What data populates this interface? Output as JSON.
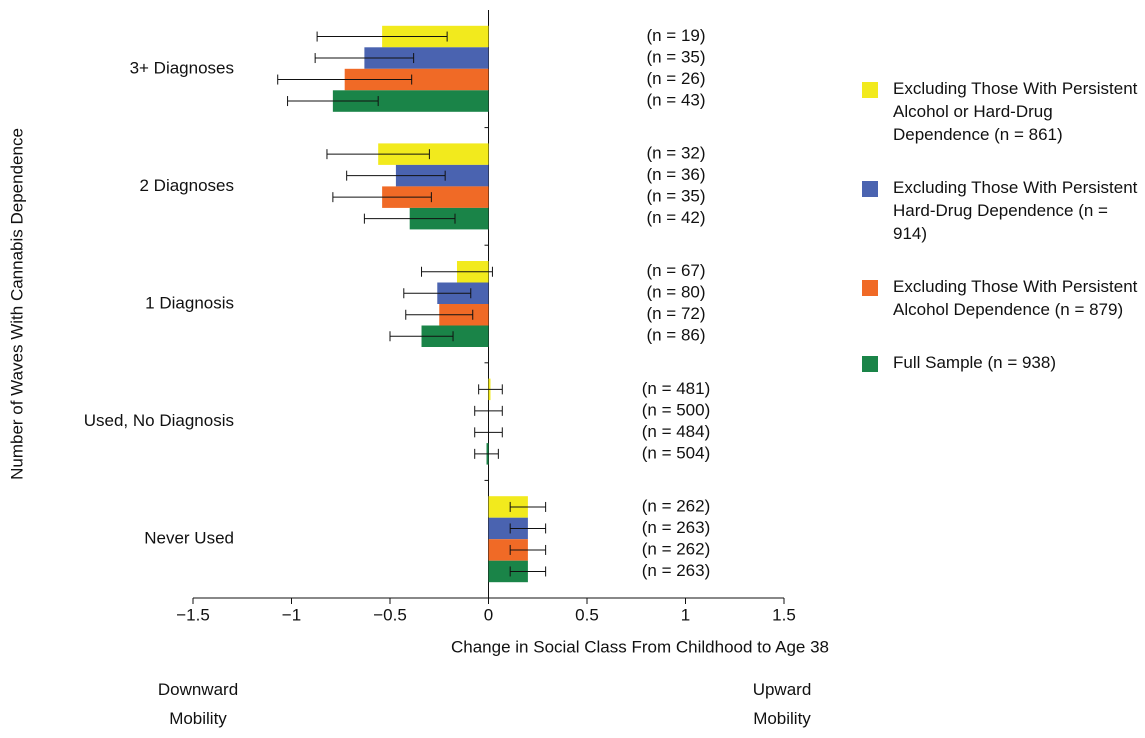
{
  "chart_data": {
    "type": "hbar-errorbar",
    "y_label": "Number of Waves With Cannabis Dependence",
    "x_label": "Change in Social Class From Childhood to Age 38",
    "annotations": [
      "Downward Mobility",
      "Upward Mobility"
    ],
    "categories": [
      "3+ Diagnoses",
      "2 Diagnoses",
      "1 Diagnosis",
      "Used, No Diagnosis",
      "Never Used"
    ],
    "xlim": [
      -1.5,
      1.5
    ],
    "xticks": [
      {
        "value": -1.5,
        "label": "−1.5"
      },
      {
        "value": -1,
        "label": "−1"
      },
      {
        "value": -0.5,
        "label": "−0.5"
      },
      0,
      0.5,
      1,
      1.5
    ],
    "series": [
      {
        "name": "Excluding Those With Persistent Alcohol or Hard-Drug Dependence (n = 861)",
        "color": "#f2ea1d",
        "values": [
          -0.54,
          -0.56,
          -0.16,
          0.01,
          0.2
        ],
        "errors": [
          0.33,
          0.26,
          0.18,
          0.06,
          0.09
        ],
        "n_labels": [
          "(n = 19)",
          "(n = 32)",
          "(n = 67)",
          "(n = 481)",
          "(n = 262)"
        ]
      },
      {
        "name": "Excluding Those With Persistent Hard-Drug Dependence (n = 914)",
        "color": "#4a63b0",
        "values": [
          -0.63,
          -0.47,
          -0.26,
          0.0,
          0.2
        ],
        "errors": [
          0.25,
          0.25,
          0.17,
          0.07,
          0.09
        ],
        "n_labels": [
          "(n = 35)",
          "(n = 36)",
          "(n = 80)",
          "(n = 500)",
          "(n = 263)"
        ]
      },
      {
        "name": "Excluding Those With Persistent Alcohol Dependence (n = 879)",
        "color": "#f06a26",
        "values": [
          -0.73,
          -0.54,
          -0.25,
          0.0,
          0.2
        ],
        "errors": [
          0.34,
          0.25,
          0.17,
          0.07,
          0.09
        ],
        "n_labels": [
          "(n = 26)",
          "(n = 35)",
          "(n = 72)",
          "(n = 484)",
          "(n = 262)"
        ]
      },
      {
        "name": "Full Sample (n = 938)",
        "color": "#1a8448",
        "values": [
          -0.79,
          -0.4,
          -0.34,
          -0.01,
          0.2
        ],
        "errors": [
          0.23,
          0.23,
          0.16,
          0.06,
          0.09
        ],
        "n_labels": [
          "(n = 43)",
          "(n = 42)",
          "(n = 86)",
          "(n = 504)",
          "(n = 263)"
        ]
      }
    ]
  }
}
